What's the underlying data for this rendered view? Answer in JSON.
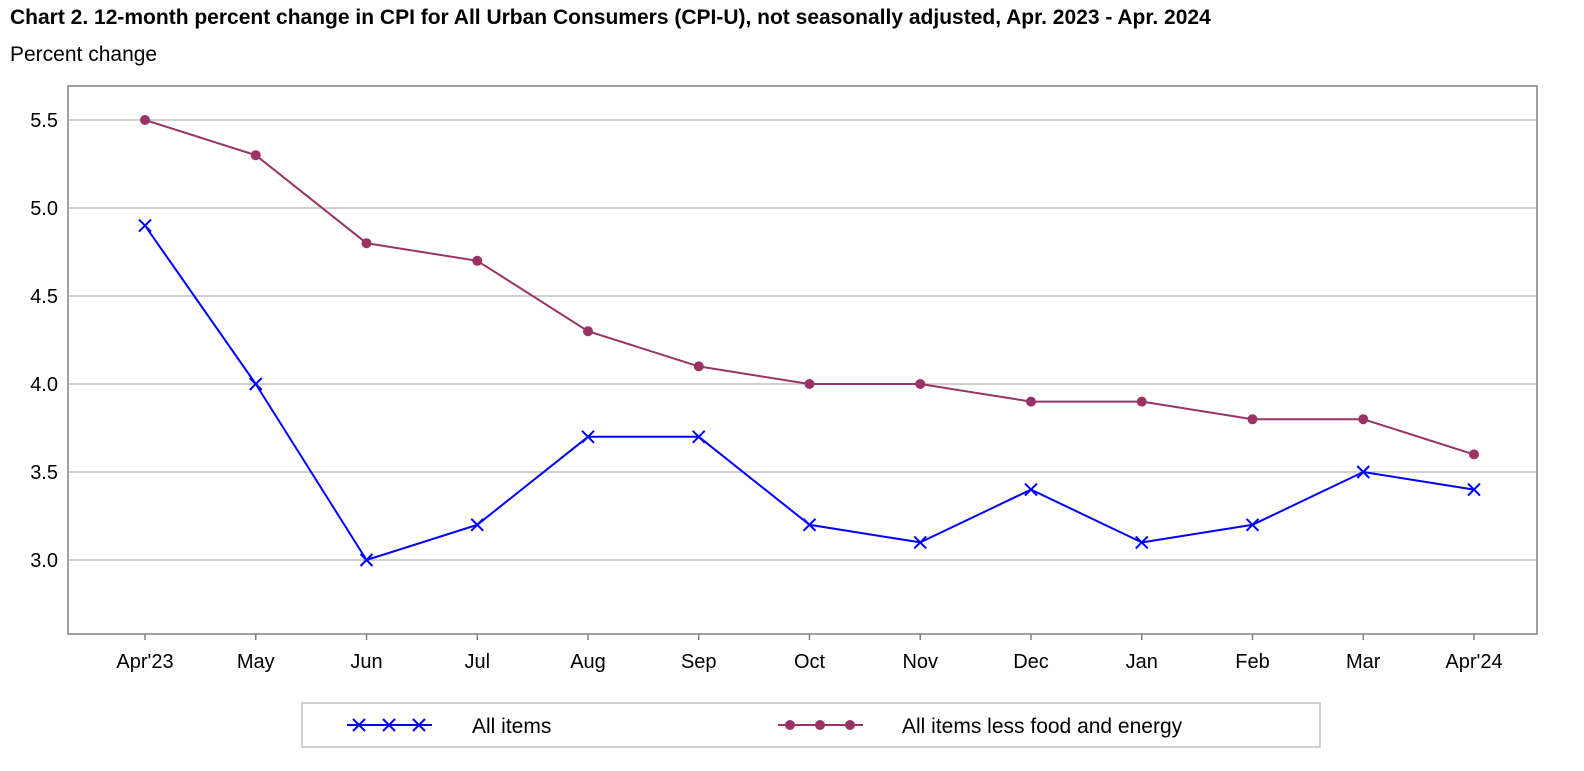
{
  "chart_data": {
    "type": "line",
    "title": "Chart 2. 12-month percent change in CPI for All Urban Consumers (CPI-U), not seasonally adjusted, Apr. 2023 - Apr. 2024",
    "ylabel": "Percent change",
    "xlabel": "",
    "categories": [
      "Apr'23",
      "May",
      "Jun",
      "Jul",
      "Aug",
      "Sep",
      "Oct",
      "Nov",
      "Dec",
      "Jan",
      "Feb",
      "Mar",
      "Apr'24"
    ],
    "yticks": [
      "3.0",
      "3.5",
      "4.0",
      "4.5",
      "5.0",
      "5.5"
    ],
    "ylim": [
      2.6,
      5.7
    ],
    "grid": true,
    "legend_position": "bottom",
    "series": [
      {
        "name": "All items",
        "color": "#0000ff",
        "marker": "x",
        "values": [
          4.9,
          4.0,
          3.0,
          3.2,
          3.7,
          3.7,
          3.2,
          3.1,
          3.4,
          3.1,
          3.2,
          3.5,
          3.4
        ]
      },
      {
        "name": "All items less food and energy",
        "color": "#993366",
        "marker": "circle",
        "values": [
          5.5,
          5.3,
          4.8,
          4.7,
          4.3,
          4.1,
          4.0,
          4.0,
          3.9,
          3.9,
          3.8,
          3.8,
          3.6
        ]
      }
    ]
  }
}
